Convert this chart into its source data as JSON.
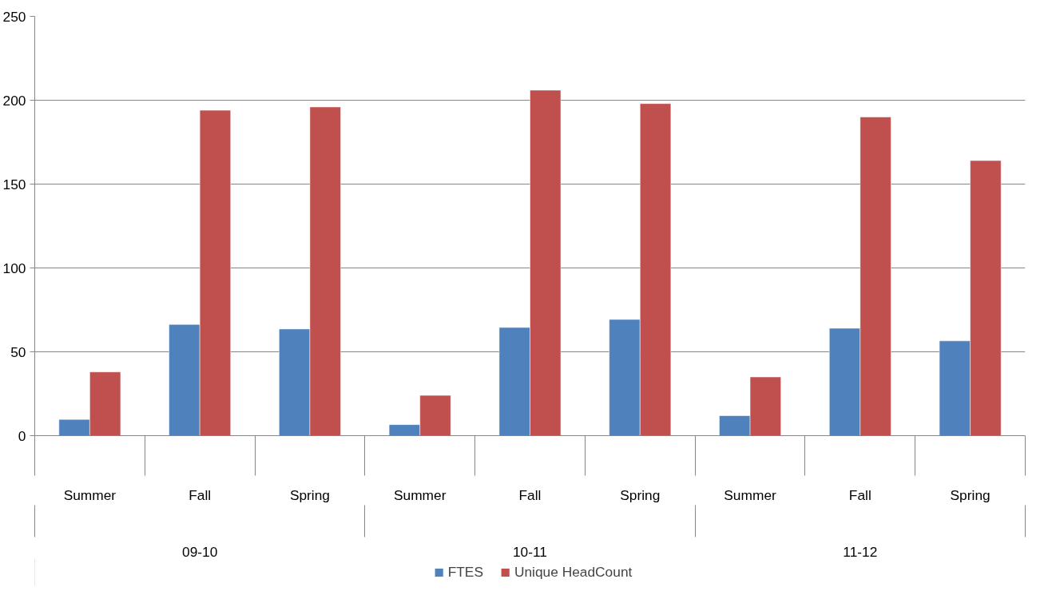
{
  "chart_data": {
    "type": "bar",
    "categories": [
      "Summer",
      "Fall",
      "Spring",
      "Summer",
      "Fall",
      "Spring",
      "Summer",
      "Fall",
      "Spring"
    ],
    "annotations": [
      "09-10",
      "10-11",
      "11-12"
    ],
    "series": [
      {
        "name": "FTES",
        "color": "#4f81bd",
        "values": [
          9.7,
          66.3,
          63.6,
          6.6,
          64.5,
          69.3,
          11.9,
          64,
          56.5
        ]
      },
      {
        "name": "Unique HeadCount",
        "color": "#c0504d",
        "values": [
          38,
          194,
          196,
          24,
          206,
          198,
          35,
          190,
          164
        ]
      }
    ],
    "ylim": [
      0,
      250
    ],
    "yticks": [
      0,
      50,
      100,
      150,
      200,
      250
    ],
    "grid": "y",
    "legend": "bottom"
  }
}
